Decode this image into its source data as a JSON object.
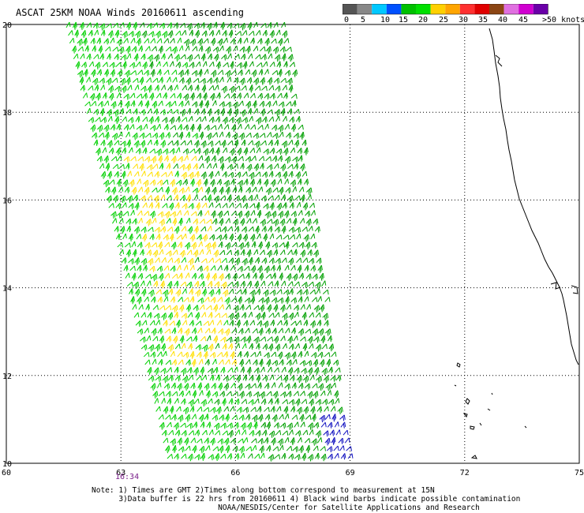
{
  "header": {
    "title": "ASCAT 25KM NOAA Winds 20160611 ascending"
  },
  "speed_scale": {
    "colors": [
      "#555555",
      "#888888",
      "#00c8ff",
      "#0050ff",
      "#00c000",
      "#00e000",
      "#ffd000",
      "#ffa500",
      "#ff3030",
      "#e00000",
      "#8b4513",
      "#e070e0",
      "#d000d0",
      "#6a00a8"
    ],
    "labels": [
      "0",
      "5",
      "10",
      "15",
      "20",
      "25",
      "30",
      "35",
      "40",
      "45",
      ">50 knots"
    ]
  },
  "map": {
    "lon_range": [
      60,
      75
    ],
    "lat_range": [
      10,
      20
    ],
    "lon_ticks": [
      "60",
      "63",
      "66",
      "69",
      "72",
      "75"
    ],
    "lat_ticks": [
      "20",
      "18",
      "16",
      "14",
      "12",
      "10"
    ],
    "grid_lons": [
      63,
      66,
      69,
      72
    ],
    "grid_lats": [
      12,
      14,
      16,
      18
    ],
    "coast_color": "#000000",
    "barb_colors": {
      "15_20": "#00a000",
      "20_25": "#00d000",
      "25_30": "#ffe000",
      "contaminated": "#1010c0"
    }
  },
  "pass_time": "16:34",
  "notes": [
    "Note: 1) Times are GMT 2)Times along bottom correspond to measurement at 15N",
    "      3)Data buffer is 22 hrs from 20160611 4) Black wind barbs indicate possible contamination",
    "                            NOAA/NESDIS/Center for Satellite Applications and Research"
  ]
}
